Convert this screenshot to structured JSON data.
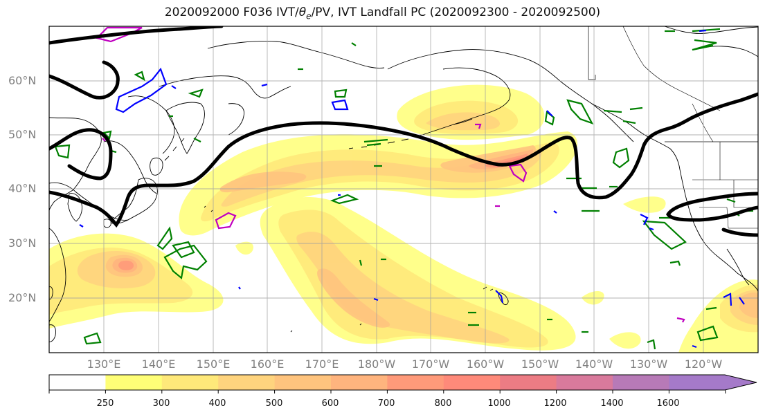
{
  "title": {
    "prefix": "2020092000 F036 IVT/",
    "theta_symbol": "θ",
    "theta_sub": "e",
    "suffix": "/PV, IVT Landfall PC (2020092300 - 2020092500)"
  },
  "lat_labels": [
    "60°N",
    "50°N",
    "40°N",
    "30°N",
    "20°N"
  ],
  "lon_labels": [
    "130°E",
    "140°E",
    "150°E",
    "160°E",
    "170°E",
    "180°W",
    "170°W",
    "160°W",
    "150°W",
    "140°W",
    "130°W",
    "120°W"
  ],
  "colorbar": {
    "levels": [
      "250",
      "300",
      "400",
      "500",
      "600",
      "700",
      "800",
      "1000",
      "1200",
      "1400",
      "1600"
    ],
    "colors": [
      "#ffffff",
      "#ffff77",
      "#ffe97a",
      "#ffd47e",
      "#ffc47e",
      "#ffb47e",
      "#ff9a7a",
      "#ff8a7a",
      "#ec7c84",
      "#d97a9c",
      "#b77ab7",
      "#a57ac9"
    ]
  },
  "colors": {
    "ivt_jet": "#000000",
    "theta_e_contours": "#008000",
    "pv_contours_blue": "#0000ff",
    "pv_contours_magenta": "#c000c0",
    "gridlines": "#a0a0a0",
    "coastline": "#000000"
  }
}
